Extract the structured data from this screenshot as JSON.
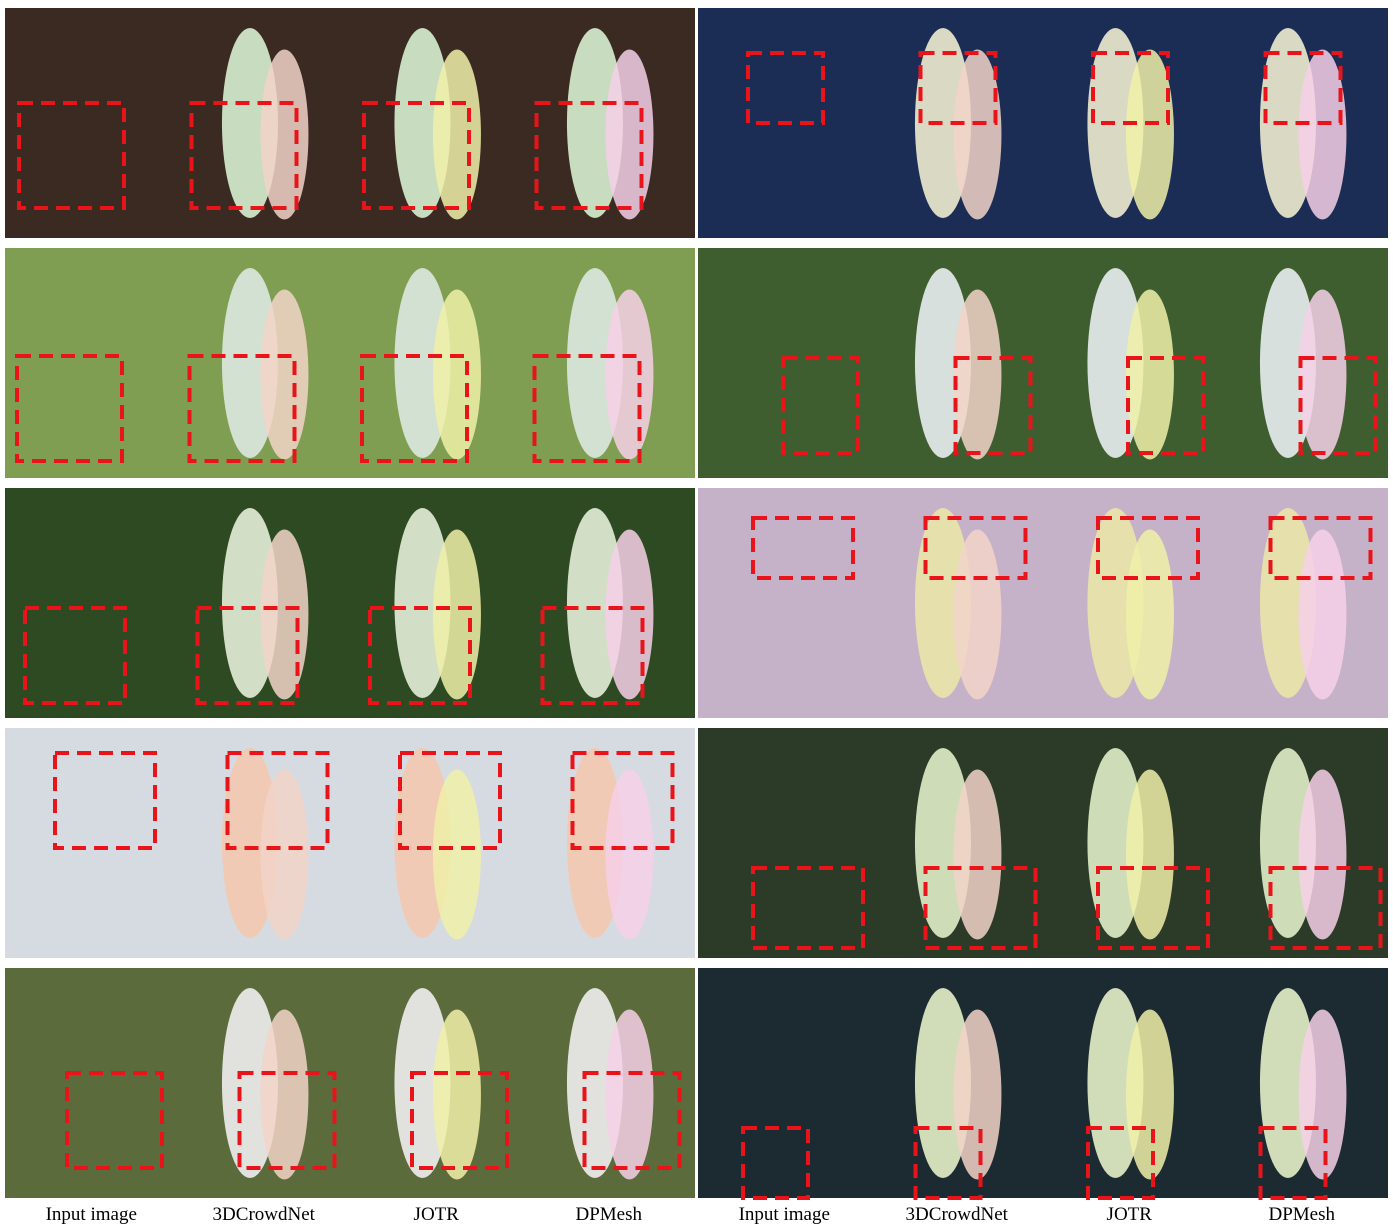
{
  "columns": [
    "Input image",
    "3DCrowdNet",
    "JOTR",
    "DPMesh",
    "Input image",
    "3DCrowdNet",
    "JOTR",
    "DPMesh"
  ]
}
